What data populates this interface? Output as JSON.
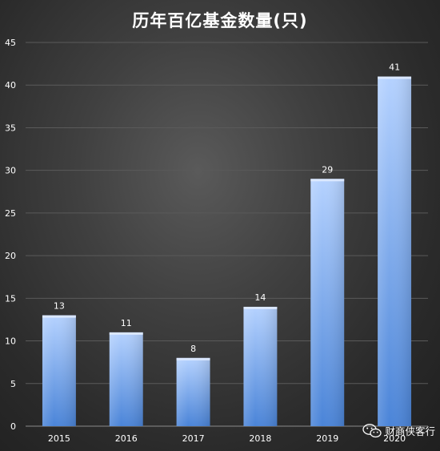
{
  "chart_data": {
    "type": "bar",
    "title": "历年百亿基金数量(只)",
    "categories": [
      "2015",
      "2016",
      "2017",
      "2018",
      "2019",
      "2020"
    ],
    "values": [
      13,
      11,
      8,
      14,
      29,
      41
    ],
    "ylim": [
      0,
      45
    ],
    "yticks": [
      0,
      5,
      10,
      15,
      20,
      25,
      30,
      35,
      40,
      45
    ],
    "grid": true,
    "data_labels": true,
    "colors": {
      "bar_top": "#b5d2ff",
      "bar_bottom": "#4a84d8",
      "grid": "#5a5a5a",
      "text": "#ffffff"
    }
  },
  "watermark": {
    "text": "财商侠客行",
    "icon": "wechat-icon"
  }
}
